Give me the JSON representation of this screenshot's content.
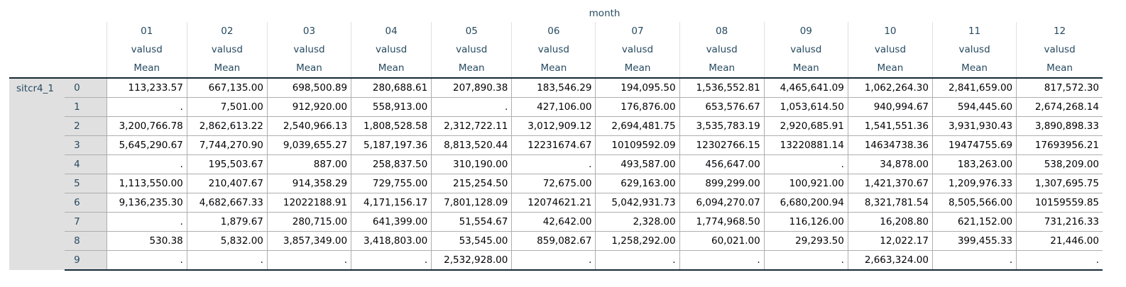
{
  "table": {
    "top_header": "month",
    "columns": [
      {
        "month": "01",
        "variable": "valusd",
        "stat": "Mean"
      },
      {
        "month": "02",
        "variable": "valusd",
        "stat": "Mean"
      },
      {
        "month": "03",
        "variable": "valusd",
        "stat": "Mean"
      },
      {
        "month": "04",
        "variable": "valusd",
        "stat": "Mean"
      },
      {
        "month": "05",
        "variable": "valusd",
        "stat": "Mean"
      },
      {
        "month": "06",
        "variable": "valusd",
        "stat": "Mean"
      },
      {
        "month": "07",
        "variable": "valusd",
        "stat": "Mean"
      },
      {
        "month": "08",
        "variable": "valusd",
        "stat": "Mean"
      },
      {
        "month": "09",
        "variable": "valusd",
        "stat": "Mean"
      },
      {
        "month": "10",
        "variable": "valusd",
        "stat": "Mean"
      },
      {
        "month": "11",
        "variable": "valusd",
        "stat": "Mean"
      },
      {
        "month": "12",
        "variable": "valusd",
        "stat": "Mean"
      }
    ],
    "row_variable": "sitcr4_1",
    "rows": [
      {
        "label": "0",
        "values": [
          "113,233.57",
          "667,135.00",
          "698,500.89",
          "280,688.61",
          "207,890.38",
          "183,546.29",
          "194,095.50",
          "1,536,552.81",
          "4,465,641.09",
          "1,062,264.30",
          "2,841,659.00",
          "817,572.30"
        ]
      },
      {
        "label": "1",
        "values": [
          ".",
          "7,501.00",
          "912,920.00",
          "558,913.00",
          ".",
          "427,106.00",
          "176,876.00",
          "653,576.67",
          "1,053,614.50",
          "940,994.67",
          "594,445.60",
          "2,674,268.14"
        ]
      },
      {
        "label": "2",
        "values": [
          "3,200,766.78",
          "2,862,613.22",
          "2,540,966.13",
          "1,808,528.58",
          "2,312,722.11",
          "3,012,909.12",
          "2,694,481.75",
          "3,535,783.19",
          "2,920,685.91",
          "1,541,551.36",
          "3,931,930.43",
          "3,890,898.33"
        ]
      },
      {
        "label": "3",
        "values": [
          "5,645,290.67",
          "7,744,270.90",
          "9,039,655.27",
          "5,187,197.36",
          "8,813,520.44",
          "12231674.67",
          "10109592.09",
          "12302766.15",
          "13220881.14",
          "14634738.36",
          "19474755.69",
          "17693956.21"
        ]
      },
      {
        "label": "4",
        "values": [
          ".",
          "195,503.67",
          "887.00",
          "258,837.50",
          "310,190.00",
          ".",
          "493,587.00",
          "456,647.00",
          ".",
          "34,878.00",
          "183,263.00",
          "538,209.00"
        ]
      },
      {
        "label": "5",
        "values": [
          "1,113,550.00",
          "210,407.67",
          "914,358.29",
          "729,755.00",
          "215,254.50",
          "72,675.00",
          "629,163.00",
          "899,299.00",
          "100,921.00",
          "1,421,370.67",
          "1,209,976.33",
          "1,307,695.75"
        ]
      },
      {
        "label": "6",
        "values": [
          "9,136,235.30",
          "4,682,667.33",
          "12022188.91",
          "4,171,156.17",
          "7,801,128.09",
          "12074621.21",
          "5,042,931.73",
          "6,094,270.07",
          "6,680,200.94",
          "8,321,781.54",
          "8,505,566.00",
          "10159559.85"
        ]
      },
      {
        "label": "7",
        "values": [
          ".",
          "1,879.67",
          "280,715.00",
          "641,399.00",
          "51,554.67",
          "42,642.00",
          "2,328.00",
          "1,774,968.50",
          "116,126.00",
          "16,208.80",
          "621,152.00",
          "731,216.33"
        ]
      },
      {
        "label": "8",
        "values": [
          "530.38",
          "5,832.00",
          "3,857,349.00",
          "3,418,803.00",
          "53,545.00",
          "859,082.67",
          "1,258,292.00",
          "60,021.00",
          "29,293.50",
          "12,022.17",
          "399,455.33",
          "21,446.00"
        ]
      },
      {
        "label": "9",
        "values": [
          ".",
          ".",
          ".",
          ".",
          "2,532,928.00",
          ".",
          ".",
          ".",
          ".",
          "2,663,324.00",
          ".",
          "."
        ]
      }
    ]
  }
}
